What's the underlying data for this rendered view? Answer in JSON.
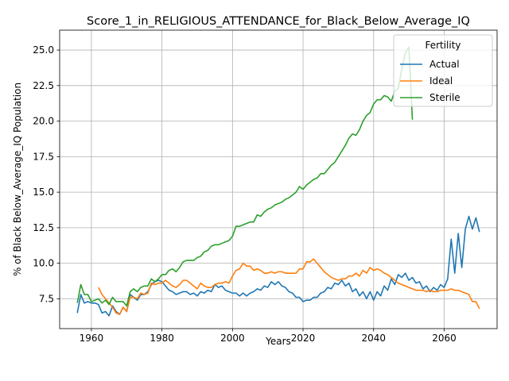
{
  "chart_data": {
    "type": "line",
    "title": "Score_1_in_RELIGIOUS_ATTENDANCE_for_Black_Below_Average_IQ",
    "xlabel": "Years",
    "ylabel": "% of Black Below_Average_IQ Population",
    "xlim": [
      1951,
      2075
    ],
    "ylim": [
      5.4,
      26.4
    ],
    "x_ticks": [
      1960,
      1980,
      2000,
      2020,
      2040,
      2060
    ],
    "y_ticks": [
      7.5,
      10.0,
      12.5,
      15.0,
      17.5,
      20.0,
      22.5,
      25.0
    ],
    "x_tick_labels": [
      "1960",
      "1980",
      "2000",
      "2020",
      "2040",
      "2060"
    ],
    "y_tick_labels": [
      "7.5",
      "10.0",
      "12.5",
      "15.0",
      "17.5",
      "20.0",
      "22.5",
      "25.0"
    ],
    "grid": true,
    "legend": {
      "title": "Fertility",
      "position": "top-right"
    },
    "series": [
      {
        "name": "Actual",
        "color": "#1f77b4",
        "x": [
          1956,
          1957,
          1958,
          1959,
          1960,
          1961,
          1962,
          1963,
          1964,
          1965,
          1966,
          1967,
          1968,
          1969,
          1970,
          1971,
          1972,
          1973,
          1974,
          1975,
          1976,
          1977,
          1978,
          1979,
          1980,
          1981,
          1982,
          1983,
          1984,
          1985,
          1986,
          1987,
          1988,
          1989,
          1990,
          1991,
          1992,
          1993,
          1994,
          1995,
          1996,
          1997,
          1998,
          1999,
          2000,
          2001,
          2002,
          2003,
          2004,
          2005,
          2006,
          2007,
          2008,
          2009,
          2010,
          2011,
          2012,
          2013,
          2014,
          2015,
          2016,
          2017,
          2018,
          2019,
          2020,
          2021,
          2022,
          2023,
          2024,
          2025,
          2026,
          2027,
          2028,
          2029,
          2030,
          2031,
          2032,
          2033,
          2034,
          2035,
          2036,
          2037,
          2038,
          2039,
          2040,
          2041,
          2042,
          2043,
          2044,
          2045,
          2046,
          2047,
          2048,
          2049,
          2050,
          2051,
          2052,
          2053,
          2054,
          2055,
          2056,
          2057,
          2058,
          2059,
          2060,
          2061,
          2062,
          2063,
          2064,
          2065,
          2066,
          2067,
          2068,
          2069,
          2070
        ],
        "y": [
          6.5,
          7.8,
          7.2,
          7.3,
          7.2,
          7.2,
          7.1,
          6.5,
          6.6,
          6.3,
          7.0,
          6.6,
          6.4,
          6.9,
          6.6,
          7.8,
          7.6,
          7.4,
          7.8,
          7.8,
          8.0,
          8.5,
          8.7,
          8.8,
          8.7,
          8.4,
          8.1,
          8.0,
          7.8,
          7.9,
          8.0,
          8.0,
          7.8,
          7.9,
          7.7,
          8.0,
          7.9,
          8.1,
          8.0,
          8.5,
          8.3,
          8.4,
          8.1,
          8.0,
          7.9,
          7.9,
          7.7,
          7.9,
          7.7,
          7.9,
          8.0,
          8.2,
          8.1,
          8.4,
          8.3,
          8.7,
          8.5,
          8.7,
          8.4,
          8.3,
          8.0,
          7.9,
          7.6,
          7.6,
          7.3,
          7.4,
          7.4,
          7.6,
          7.6,
          7.9,
          8.0,
          8.3,
          8.2,
          8.6,
          8.5,
          8.8,
          8.4,
          8.6,
          8.0,
          8.2,
          7.7,
          8.0,
          7.5,
          8.0,
          7.4,
          8.0,
          7.7,
          8.4,
          8.1,
          8.9,
          8.5,
          9.2,
          9.0,
          9.3,
          8.8,
          9.0,
          8.6,
          8.7,
          8.2,
          8.4,
          8.0,
          8.3,
          8.1,
          8.5,
          8.3,
          8.9,
          11.7,
          9.3,
          12.1,
          9.7,
          12.4,
          13.3,
          12.4,
          13.2,
          12.2
        ]
      },
      {
        "name": "Ideal",
        "color": "#ff7f0e",
        "x": [
          1962,
          1963,
          1964,
          1965,
          1966,
          1967,
          1968,
          1969,
          1970,
          1971,
          1972,
          1973,
          1974,
          1975,
          1976,
          1977,
          1978,
          1979,
          1980,
          1981,
          1982,
          1983,
          1984,
          1985,
          1986,
          1987,
          1988,
          1989,
          1990,
          1991,
          1992,
          1993,
          1994,
          1995,
          1996,
          1997,
          1998,
          1999,
          2000,
          2001,
          2002,
          2003,
          2004,
          2005,
          2006,
          2007,
          2008,
          2009,
          2010,
          2011,
          2012,
          2013,
          2014,
          2015,
          2016,
          2017,
          2018,
          2019,
          2020,
          2021,
          2022,
          2023,
          2024,
          2025,
          2026,
          2027,
          2028,
          2029,
          2030,
          2031,
          2032,
          2033,
          2034,
          2035,
          2036,
          2037,
          2038,
          2039,
          2040,
          2041,
          2042,
          2043,
          2044,
          2045,
          2046,
          2047,
          2048,
          2049,
          2050,
          2051,
          2052,
          2053,
          2054,
          2055,
          2056,
          2057,
          2058,
          2059,
          2060,
          2061,
          2062,
          2063,
          2064,
          2065,
          2066,
          2067,
          2068,
          2069,
          2070
        ],
        "y": [
          8.3,
          7.8,
          7.5,
          7.2,
          6.9,
          6.5,
          6.4,
          6.9,
          6.6,
          7.6,
          7.6,
          7.5,
          7.9,
          7.8,
          7.9,
          8.6,
          8.5,
          8.6,
          8.6,
          8.8,
          8.6,
          8.4,
          8.3,
          8.5,
          8.8,
          8.8,
          8.6,
          8.4,
          8.2,
          8.6,
          8.4,
          8.3,
          8.3,
          8.5,
          8.6,
          8.6,
          8.7,
          8.6,
          9.1,
          9.5,
          9.6,
          10.0,
          9.8,
          9.8,
          9.5,
          9.6,
          9.5,
          9.3,
          9.3,
          9.4,
          9.3,
          9.4,
          9.4,
          9.3,
          9.3,
          9.3,
          9.3,
          9.6,
          9.6,
          10.1,
          10.1,
          10.3,
          10.0,
          9.7,
          9.4,
          9.2,
          9.0,
          8.9,
          8.8,
          8.9,
          8.9,
          9.1,
          9.1,
          9.3,
          9.1,
          9.5,
          9.3,
          9.7,
          9.5,
          9.6,
          9.5,
          9.3,
          9.2,
          9.0,
          8.8,
          8.6,
          8.5,
          8.4,
          8.3,
          8.2,
          8.1,
          8.1,
          8.1,
          8.0,
          8.1,
          8.0,
          8.0,
          8.1,
          8.1,
          8.1,
          8.2,
          8.1,
          8.1,
          8.0,
          7.9,
          7.8,
          7.3,
          7.3,
          6.8
        ]
      },
      {
        "name": "Sterile",
        "color": "#2ca02c",
        "x": [
          1956,
          1957,
          1958,
          1959,
          1960,
          1961,
          1962,
          1963,
          1964,
          1965,
          1966,
          1967,
          1968,
          1969,
          1970,
          1971,
          1972,
          1973,
          1974,
          1975,
          1976,
          1977,
          1978,
          1979,
          1980,
          1981,
          1982,
          1983,
          1984,
          1985,
          1986,
          1987,
          1988,
          1989,
          1990,
          1991,
          1992,
          1993,
          1994,
          1995,
          1996,
          1997,
          1998,
          1999,
          2000,
          2001,
          2002,
          2003,
          2004,
          2005,
          2006,
          2007,
          2008,
          2009,
          2010,
          2011,
          2012,
          2013,
          2014,
          2015,
          2016,
          2017,
          2018,
          2019,
          2020,
          2021,
          2022,
          2023,
          2024,
          2025,
          2026,
          2027,
          2028,
          2029,
          2030,
          2031,
          2032,
          2033,
          2034,
          2035,
          2036,
          2037,
          2038,
          2039,
          2040,
          2041,
          2042,
          2043,
          2044,
          2045,
          2046,
          2047,
          2048,
          2049,
          2050,
          2051
        ],
        "y": [
          7.2,
          8.5,
          7.8,
          7.8,
          7.3,
          7.4,
          7.5,
          7.2,
          7.4,
          7.1,
          7.6,
          7.3,
          7.3,
          7.3,
          7.0,
          8.0,
          8.2,
          8.0,
          8.3,
          8.4,
          8.4,
          8.9,
          8.7,
          8.9,
          9.2,
          9.2,
          9.5,
          9.6,
          9.4,
          9.7,
          10.1,
          10.2,
          10.2,
          10.2,
          10.4,
          10.5,
          10.8,
          10.9,
          11.2,
          11.3,
          11.3,
          11.4,
          11.5,
          11.6,
          11.9,
          12.6,
          12.6,
          12.7,
          12.8,
          12.9,
          12.9,
          13.4,
          13.3,
          13.6,
          13.8,
          13.9,
          14.1,
          14.2,
          14.3,
          14.5,
          14.6,
          14.8,
          15.0,
          15.4,
          15.2,
          15.5,
          15.7,
          15.9,
          16.0,
          16.3,
          16.3,
          16.6,
          16.9,
          17.1,
          17.5,
          17.9,
          18.3,
          18.8,
          19.1,
          19.0,
          19.4,
          20.0,
          20.4,
          20.6,
          21.2,
          21.5,
          21.5,
          21.8,
          21.7,
          21.4,
          22.1,
          22.3,
          23.7,
          24.8,
          25.2,
          20.1
        ]
      }
    ]
  }
}
